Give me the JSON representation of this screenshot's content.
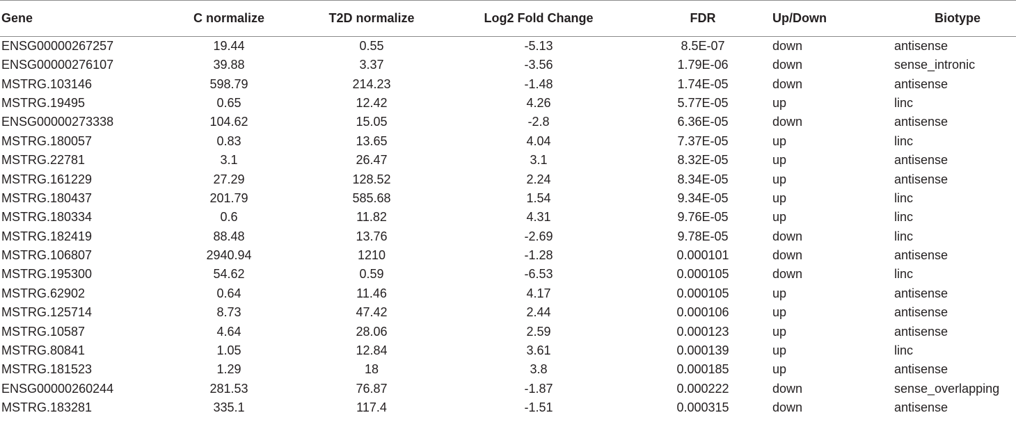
{
  "table": {
    "headers": {
      "gene": "Gene",
      "c_normalize": "C normalize",
      "t2d_normalize": "T2D normalize",
      "log2fc": "Log2 Fold Change",
      "fdr": "FDR",
      "updown": "Up/Down",
      "biotype": "Biotype"
    },
    "rows": [
      {
        "gene": "ENSG00000267257",
        "c": "19.44",
        "t2d": "0.55",
        "lfc": "-5.13",
        "fdr": "8.5E-07",
        "ud": "down",
        "bio": "antisense"
      },
      {
        "gene": "ENSG00000276107",
        "c": "39.88",
        "t2d": "3.37",
        "lfc": "-3.56",
        "fdr": "1.79E-06",
        "ud": "down",
        "bio": "sense_intronic"
      },
      {
        "gene": "MSTRG.103146",
        "c": "598.79",
        "t2d": "214.23",
        "lfc": "-1.48",
        "fdr": "1.74E-05",
        "ud": "down",
        "bio": "antisense"
      },
      {
        "gene": "MSTRG.19495",
        "c": "0.65",
        "t2d": "12.42",
        "lfc": "4.26",
        "fdr": "5.77E-05",
        "ud": "up",
        "bio": "linc"
      },
      {
        "gene": "ENSG00000273338",
        "c": "104.62",
        "t2d": "15.05",
        "lfc": "-2.8",
        "fdr": "6.36E-05",
        "ud": "down",
        "bio": "antisense"
      },
      {
        "gene": "MSTRG.180057",
        "c": "0.83",
        "t2d": "13.65",
        "lfc": "4.04",
        "fdr": "7.37E-05",
        "ud": "up",
        "bio": "linc"
      },
      {
        "gene": "MSTRG.22781",
        "c": "3.1",
        "t2d": "26.47",
        "lfc": "3.1",
        "fdr": "8.32E-05",
        "ud": "up",
        "bio": "antisense"
      },
      {
        "gene": "MSTRG.161229",
        "c": "27.29",
        "t2d": "128.52",
        "lfc": "2.24",
        "fdr": "8.34E-05",
        "ud": "up",
        "bio": "antisense"
      },
      {
        "gene": "MSTRG.180437",
        "c": "201.79",
        "t2d": "585.68",
        "lfc": "1.54",
        "fdr": "9.34E-05",
        "ud": "up",
        "bio": "linc"
      },
      {
        "gene": "MSTRG.180334",
        "c": "0.6",
        "t2d": "11.82",
        "lfc": "4.31",
        "fdr": "9.76E-05",
        "ud": "up",
        "bio": "linc"
      },
      {
        "gene": "MSTRG.182419",
        "c": "88.48",
        "t2d": "13.76",
        "lfc": "-2.69",
        "fdr": "9.78E-05",
        "ud": "down",
        "bio": "linc"
      },
      {
        "gene": "MSTRG.106807",
        "c": "2940.94",
        "t2d": "1210",
        "lfc": "-1.28",
        "fdr": "0.000101",
        "ud": "down",
        "bio": "antisense"
      },
      {
        "gene": "MSTRG.195300",
        "c": "54.62",
        "t2d": "0.59",
        "lfc": "-6.53",
        "fdr": "0.000105",
        "ud": "down",
        "bio": "linc"
      },
      {
        "gene": "MSTRG.62902",
        "c": "0.64",
        "t2d": "11.46",
        "lfc": "4.17",
        "fdr": "0.000105",
        "ud": "up",
        "bio": "antisense"
      },
      {
        "gene": "MSTRG.125714",
        "c": "8.73",
        "t2d": "47.42",
        "lfc": "2.44",
        "fdr": "0.000106",
        "ud": "up",
        "bio": "antisense"
      },
      {
        "gene": "MSTRG.10587",
        "c": "4.64",
        "t2d": "28.06",
        "lfc": "2.59",
        "fdr": "0.000123",
        "ud": "up",
        "bio": "antisense"
      },
      {
        "gene": "MSTRG.80841",
        "c": "1.05",
        "t2d": "12.84",
        "lfc": "3.61",
        "fdr": "0.000139",
        "ud": "up",
        "bio": "linc"
      },
      {
        "gene": "MSTRG.181523",
        "c": "1.29",
        "t2d": "18",
        "lfc": "3.8",
        "fdr": "0.000185",
        "ud": "up",
        "bio": "antisense"
      },
      {
        "gene": "ENSG00000260244",
        "c": "281.53",
        "t2d": "76.87",
        "lfc": "-1.87",
        "fdr": "0.000222",
        "ud": "down",
        "bio": "sense_overlapping"
      },
      {
        "gene": "MSTRG.183281",
        "c": "335.1",
        "t2d": "117.4",
        "lfc": "-1.51",
        "fdr": "0.000315",
        "ud": "down",
        "bio": "antisense"
      }
    ]
  }
}
